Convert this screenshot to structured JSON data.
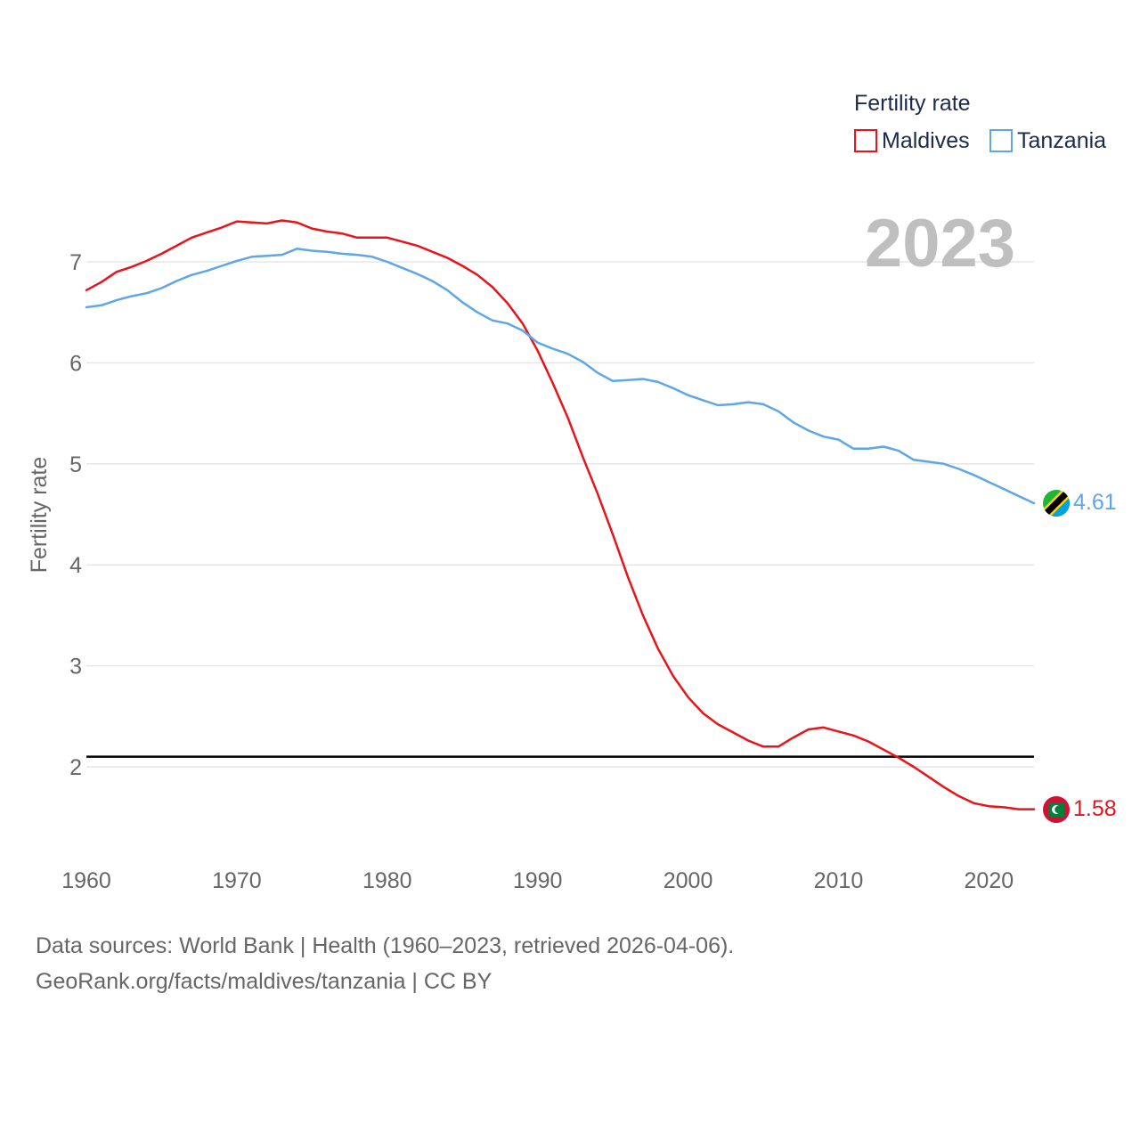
{
  "chart_data": {
    "type": "line",
    "title": "Fertility rate",
    "year_label": "2023",
    "ylabel": "Fertility rate",
    "xlabel": "",
    "xlim": [
      1960,
      2023
    ],
    "ylim": [
      1.2,
      7.8
    ],
    "x_ticks": [
      1960,
      1970,
      1980,
      1990,
      2000,
      2010,
      2020
    ],
    "y_ticks": [
      2,
      3,
      4,
      5,
      6,
      7
    ],
    "reference_line": 2.1,
    "x": [
      1960,
      1961,
      1962,
      1963,
      1964,
      1965,
      1966,
      1967,
      1968,
      1969,
      1970,
      1971,
      1972,
      1973,
      1974,
      1975,
      1976,
      1977,
      1978,
      1979,
      1980,
      1981,
      1982,
      1983,
      1984,
      1985,
      1986,
      1987,
      1988,
      1989,
      1990,
      1991,
      1992,
      1993,
      1994,
      1995,
      1996,
      1997,
      1998,
      1999,
      2000,
      2001,
      2002,
      2003,
      2004,
      2005,
      2006,
      2007,
      2008,
      2009,
      2010,
      2011,
      2012,
      2013,
      2014,
      2015,
      2016,
      2017,
      2018,
      2019,
      2020,
      2021,
      2022,
      2023
    ],
    "series": [
      {
        "name": "Maldives",
        "color": "#e8141c",
        "end_label": "1.58",
        "values": [
          6.72,
          6.8,
          6.9,
          6.95,
          7.01,
          7.08,
          7.16,
          7.24,
          7.29,
          7.34,
          7.4,
          7.39,
          7.38,
          7.41,
          7.39,
          7.33,
          7.3,
          7.28,
          7.24,
          7.24,
          7.24,
          7.2,
          7.16,
          7.1,
          7.04,
          6.96,
          6.87,
          6.75,
          6.59,
          6.39,
          6.12,
          5.8,
          5.46,
          5.07,
          4.7,
          4.3,
          3.88,
          3.5,
          3.17,
          2.9,
          2.69,
          2.53,
          2.42,
          2.34,
          2.26,
          2.2,
          2.2,
          2.29,
          2.37,
          2.39,
          2.35,
          2.31,
          2.25,
          2.17,
          2.09,
          2.0,
          1.9,
          1.8,
          1.71,
          1.64,
          1.61,
          1.6,
          1.58,
          1.58
        ]
      },
      {
        "name": "Tanzania",
        "color": "#5ea6e6",
        "end_label": "4.61",
        "values": [
          6.55,
          6.57,
          6.62,
          6.66,
          6.69,
          6.74,
          6.81,
          6.87,
          6.91,
          6.96,
          7.01,
          7.05,
          7.06,
          7.07,
          7.13,
          7.11,
          7.1,
          7.08,
          7.07,
          7.05,
          7.0,
          6.94,
          6.88,
          6.81,
          6.72,
          6.6,
          6.5,
          6.42,
          6.39,
          6.32,
          6.2,
          6.14,
          6.09,
          6.01,
          5.9,
          5.82,
          5.83,
          5.84,
          5.81,
          5.75,
          5.68,
          5.63,
          5.58,
          5.59,
          5.61,
          5.59,
          5.52,
          5.41,
          5.33,
          5.27,
          5.24,
          5.15,
          5.15,
          5.17,
          5.13,
          5.04,
          5.02,
          5.0,
          4.95,
          4.89,
          4.82,
          4.75,
          4.68,
          4.61
        ]
      }
    ]
  },
  "legend": {
    "title": "Fertility rate",
    "items": [
      {
        "label": "Maldives",
        "color": "#e8141c"
      },
      {
        "label": "Tanzania",
        "color": "#5ea6e6"
      }
    ]
  },
  "footer": {
    "line1": "Data sources: World Bank | Health (1960–2023, retrieved 2026-04-06).",
    "line2": "GeoRank.org/facts/maldives/tanzania | CC BY"
  },
  "flags": {
    "maldives": "maldives-flag-icon",
    "tanzania": "tanzania-flag-icon"
  }
}
